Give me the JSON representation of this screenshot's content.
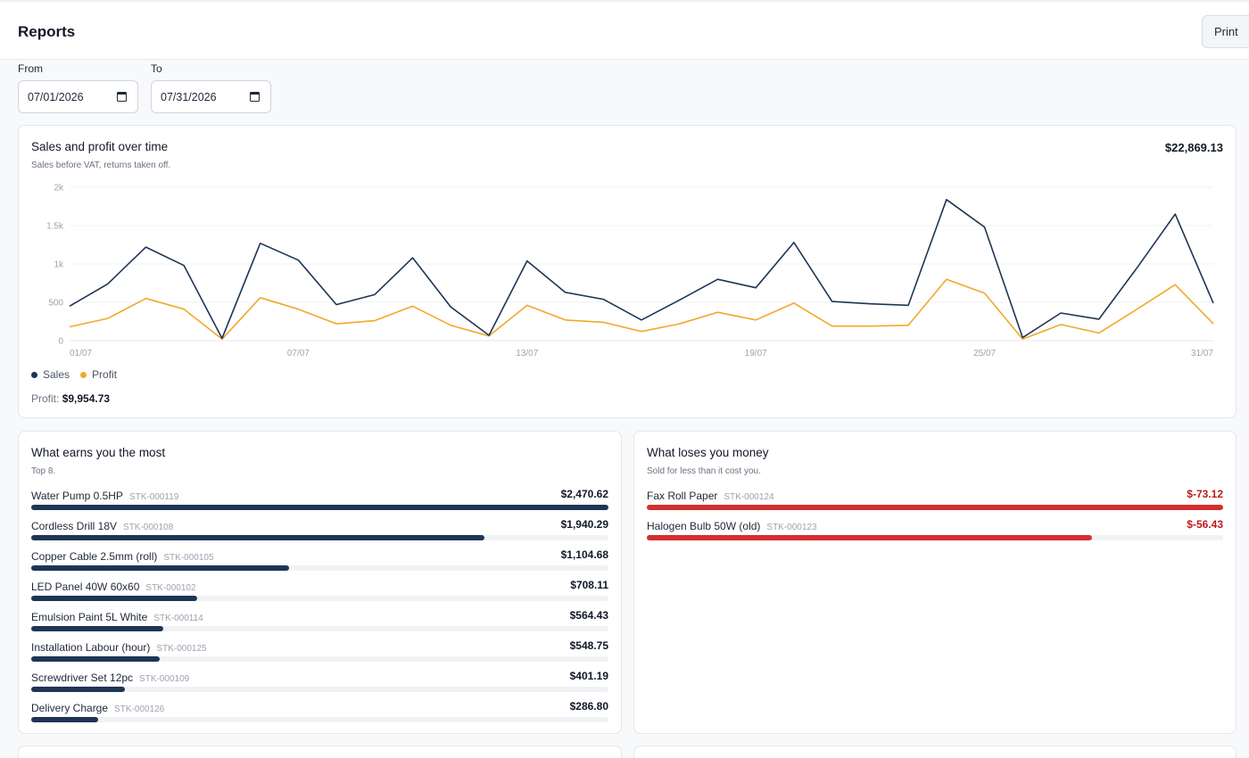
{
  "header": {
    "title": "Reports",
    "print_label": "Print"
  },
  "filters": {
    "from": {
      "label": "From",
      "value": "07/01/2026"
    },
    "to": {
      "label": "To",
      "value": "07/31/2026"
    }
  },
  "colors": {
    "sales": "#1e3555",
    "profit": "#f0a92a",
    "positive_bar": "#1e3555",
    "negative_bar": "#d32f2f"
  },
  "sales_card": {
    "title": "Sales and profit over time",
    "subtitle": "Sales before VAT, returns taken off.",
    "total": "$22,869.13",
    "legend": [
      "Sales",
      "Profit"
    ],
    "profit_label": "Profit:",
    "profit_value": "$9,954.73"
  },
  "chart_data": {
    "type": "line",
    "x": [
      "01/07",
      "02/07",
      "03/07",
      "04/07",
      "05/07",
      "06/07",
      "07/07",
      "08/07",
      "09/07",
      "10/07",
      "11/07",
      "12/07",
      "13/07",
      "14/07",
      "15/07",
      "16/07",
      "17/07",
      "18/07",
      "19/07",
      "20/07",
      "21/07",
      "22/07",
      "23/07",
      "24/07",
      "25/07",
      "26/07",
      "27/07",
      "28/07",
      "29/07",
      "30/07",
      "31/07"
    ],
    "xticks": [
      "01/07",
      "07/07",
      "13/07",
      "19/07",
      "25/07",
      "31/07"
    ],
    "yticks": [
      "0",
      "500",
      "1k",
      "1.5k",
      "2k"
    ],
    "ylim": [
      0,
      2000
    ],
    "series": [
      {
        "name": "Sales",
        "values": [
          450,
          740,
          1220,
          980,
          30,
          1270,
          1050,
          470,
          600,
          1080,
          440,
          70,
          1040,
          630,
          540,
          270,
          530,
          800,
          690,
          1280,
          510,
          480,
          460,
          1840,
          1480,
          40,
          360,
          280,
          950,
          1650,
          490
        ]
      },
      {
        "name": "Profit",
        "values": [
          180,
          290,
          550,
          410,
          20,
          560,
          410,
          220,
          260,
          450,
          200,
          60,
          460,
          270,
          240,
          120,
          220,
          370,
          270,
          490,
          190,
          190,
          200,
          800,
          620,
          20,
          210,
          100,
          410,
          730,
          220
        ]
      }
    ],
    "grid": true,
    "legend": "bottom-left"
  },
  "earners": {
    "title": "What earns you the most",
    "subtitle": "Top 8.",
    "items": [
      {
        "name": "Water Pump 0.5HP",
        "sku": "STK-000119",
        "value": "$2,470.62",
        "fraction": 1.0
      },
      {
        "name": "Cordless Drill 18V",
        "sku": "STK-000108",
        "value": "$1,940.29",
        "fraction": 0.785
      },
      {
        "name": "Copper Cable 2.5mm (roll)",
        "sku": "STK-000105",
        "value": "$1,104.68",
        "fraction": 0.447
      },
      {
        "name": "LED Panel 40W 60x60",
        "sku": "STK-000102",
        "value": "$708.11",
        "fraction": 0.287
      },
      {
        "name": "Emulsion Paint 5L White",
        "sku": "STK-000114",
        "value": "$564.43",
        "fraction": 0.228
      },
      {
        "name": "Installation Labour (hour)",
        "sku": "STK-000125",
        "value": "$548.75",
        "fraction": 0.222
      },
      {
        "name": "Screwdriver Set 12pc",
        "sku": "STK-000109",
        "value": "$401.19",
        "fraction": 0.162
      },
      {
        "name": "Delivery Charge",
        "sku": "STK-000126",
        "value": "$286.80",
        "fraction": 0.116
      }
    ]
  },
  "losers": {
    "title": "What loses you money",
    "subtitle": "Sold for less than it cost you.",
    "items": [
      {
        "name": "Fax Roll Paper",
        "sku": "STK-000124",
        "value": "$-73.12",
        "fraction": 1.0
      },
      {
        "name": "Halogen Bulb 50W (old)",
        "sku": "STK-000123",
        "value": "$-56.43",
        "fraction": 0.772
      }
    ]
  }
}
